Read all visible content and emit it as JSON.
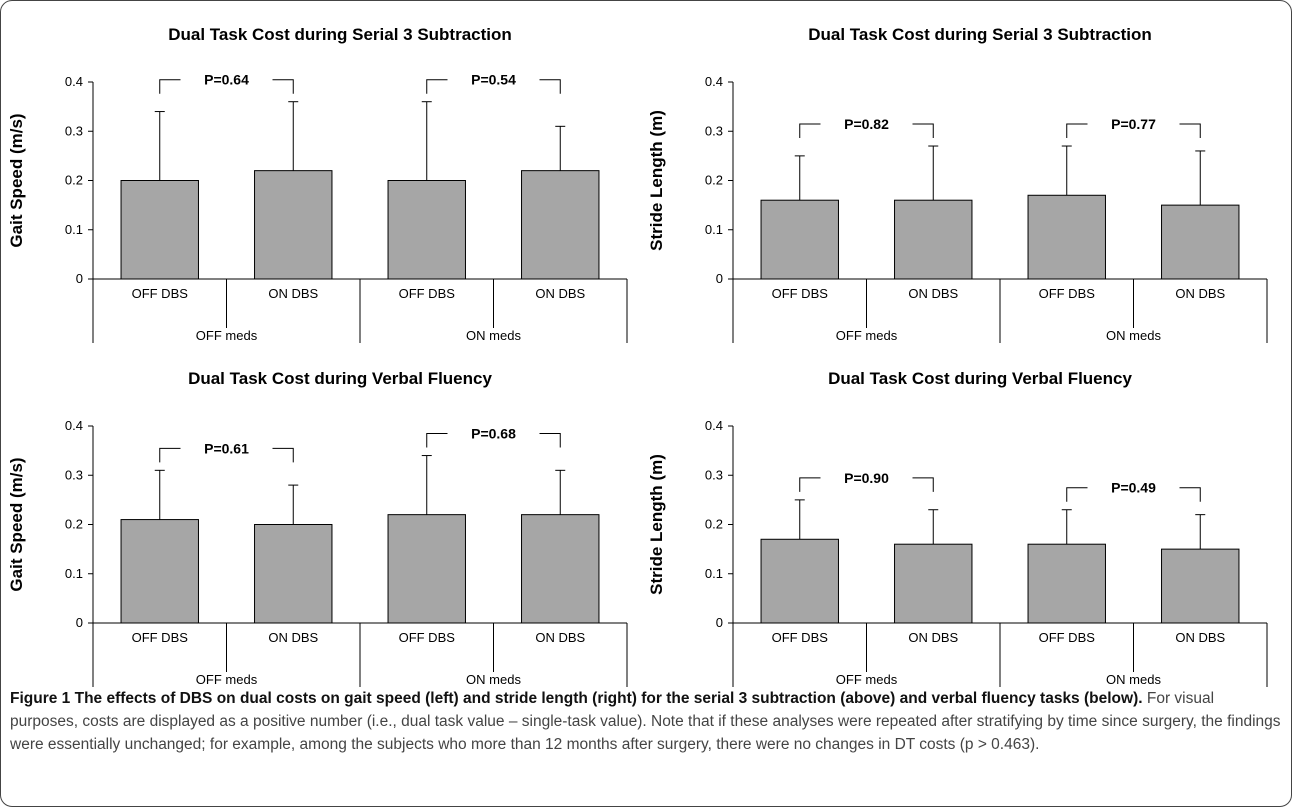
{
  "panel_order": [
    "speed_s3",
    "stride_s3",
    "speed_vf",
    "stride_vf"
  ],
  "chart_data": [
    {
      "id": "speed_s3",
      "type": "bar",
      "title": "Dual Task Cost during Serial 3 Subtraction",
      "ylabel": "Gait Speed (m/s)",
      "ylim": [
        0,
        0.4
      ],
      "yticks": [
        "0",
        "0.1",
        "0.2",
        "0.3",
        "0.4"
      ],
      "categories": [
        "OFF DBS",
        "ON DBS",
        "OFF DBS",
        "ON DBS"
      ],
      "groups": [
        "OFF meds",
        "ON meds"
      ],
      "values": [
        0.2,
        0.22,
        0.2,
        0.22
      ],
      "error_upper": [
        0.34,
        0.36,
        0.36,
        0.31
      ],
      "p_values": [
        "P=0.64",
        "P=0.54"
      ],
      "bar_color": "#a6a6a6"
    },
    {
      "id": "stride_s3",
      "type": "bar",
      "title": "Dual Task Cost during Serial 3 Subtraction",
      "ylabel": "Stride Length (m)",
      "ylim": [
        0,
        0.4
      ],
      "yticks": [
        "0",
        "0.1",
        "0.2",
        "0.3",
        "0.4"
      ],
      "categories": [
        "OFF DBS",
        "ON DBS",
        "OFF DBS",
        "ON DBS"
      ],
      "groups": [
        "OFF meds",
        "ON meds"
      ],
      "values": [
        0.16,
        0.16,
        0.17,
        0.15
      ],
      "error_upper": [
        0.25,
        0.27,
        0.27,
        0.26
      ],
      "p_values": [
        "P=0.82",
        "P=0.77"
      ],
      "bar_color": "#a6a6a6"
    },
    {
      "id": "speed_vf",
      "type": "bar",
      "title": "Dual Task Cost during Verbal Fluency",
      "ylabel": "Gait Speed (m/s)",
      "ylim": [
        0,
        0.4
      ],
      "yticks": [
        "0",
        "0.1",
        "0.2",
        "0.3",
        "0.4"
      ],
      "categories": [
        "OFF DBS",
        "ON DBS",
        "OFF DBS",
        "ON DBS"
      ],
      "groups": [
        "OFF meds",
        "ON meds"
      ],
      "values": [
        0.21,
        0.2,
        0.22,
        0.22
      ],
      "error_upper": [
        0.31,
        0.28,
        0.34,
        0.31
      ],
      "p_values": [
        "P=0.61",
        "P=0.68"
      ],
      "bar_color": "#a6a6a6"
    },
    {
      "id": "stride_vf",
      "type": "bar",
      "title": "Dual Task Cost during Verbal Fluency",
      "ylabel": "Stride Length (m)",
      "ylim": [
        0,
        0.4
      ],
      "yticks": [
        "0",
        "0.1",
        "0.2",
        "0.3",
        "0.4"
      ],
      "categories": [
        "OFF DBS",
        "ON DBS",
        "OFF DBS",
        "ON DBS"
      ],
      "groups": [
        "OFF meds",
        "ON meds"
      ],
      "values": [
        0.17,
        0.16,
        0.16,
        0.15
      ],
      "error_upper": [
        0.25,
        0.23,
        0.23,
        0.22
      ],
      "p_values": [
        "P=0.90",
        "P=0.49"
      ],
      "bar_color": "#a6a6a6"
    }
  ],
  "caption": {
    "bold": "Figure 1 The effects of DBS on dual costs on gait speed (left) and stride length (right) for the serial 3 subtraction (above) and verbal fluency tasks (below).",
    "text": " For visual purposes, costs are displayed as a positive number (i.e., dual task value – single-task value). Note that if these analyses were repeated after stratifying by time since surgery, the findings were essentially unchanged; for example, among the subjects who more than 12 months after surgery, there were no changes in DT costs (p > 0.463)."
  }
}
